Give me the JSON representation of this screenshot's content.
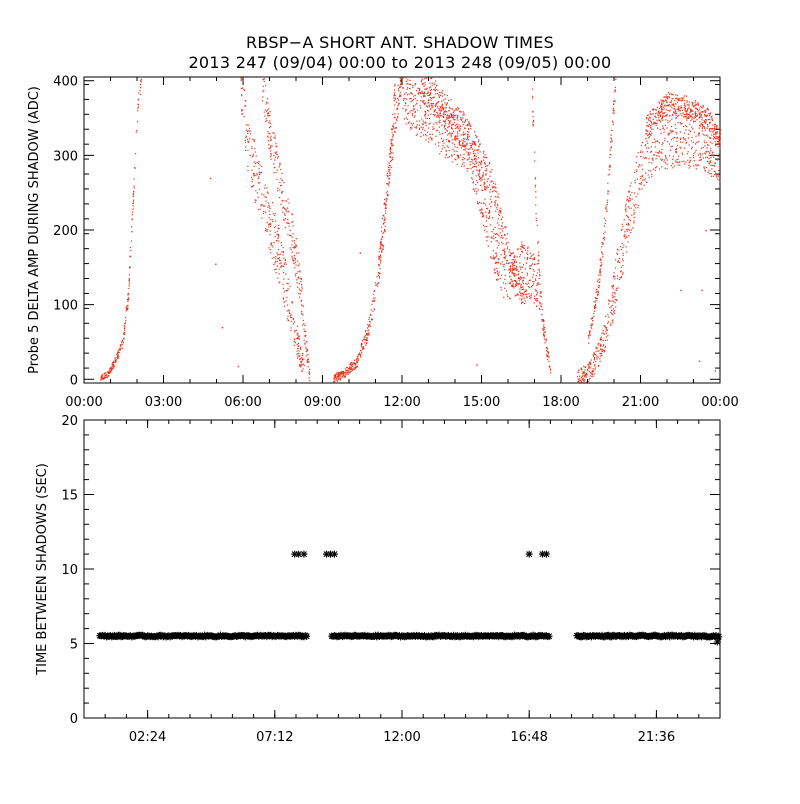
{
  "title": {
    "line1": "RBSP−A SHORT ANT. SHADOW TIMES",
    "line2": "2013 247 (09/04) 00:00 to 2013 248 (09/05) 00:00"
  },
  "colors": {
    "top_points": "#e8321c",
    "bottom_points": "#000000",
    "axes": "#000000"
  },
  "chart_data": [
    {
      "type": "scatter",
      "ylabel": "Probe 5 DELTA AMP DURING SHADOW (ADC)",
      "xlabel": "",
      "x_unit": "hours since 2013 247 00:00",
      "xlim": [
        0,
        24
      ],
      "ylim": [
        -5,
        405
      ],
      "x_ticks": [
        0,
        3,
        6,
        9,
        12,
        15,
        18,
        21,
        24
      ],
      "x_tick_labels": [
        "00:00",
        "03:00",
        "06:00",
        "09:00",
        "12:00",
        "15:00",
        "18:00",
        "21:00",
        "00:00"
      ],
      "y_ticks": [
        0,
        100,
        200,
        300,
        400
      ],
      "y_tick_labels": [
        "0",
        "100",
        "200",
        "300",
        "400"
      ],
      "marker": "dot",
      "segments": [
        {
          "band": [
            [
              0.6,
              2
            ],
            [
              0.9,
              8
            ],
            [
              1.2,
              28
            ],
            [
              1.45,
              50
            ],
            [
              1.65,
              110
            ],
            [
              1.85,
              250
            ],
            [
              2.0,
              360
            ],
            [
              2.15,
              405
            ]
          ],
          "spread": 12
        },
        {
          "band": [
            [
              5.9,
              405
            ],
            [
              6.15,
              320
            ],
            [
              6.5,
              270
            ],
            [
              7.0,
              210
            ],
            [
              7.4,
              160
            ],
            [
              7.8,
              90
            ],
            [
              8.1,
              40
            ],
            [
              8.3,
              10
            ]
          ],
          "spread": 40
        },
        {
          "band": [
            [
              6.7,
              405
            ],
            [
              7.0,
              330
            ],
            [
              7.4,
              260
            ],
            [
              7.8,
              200
            ],
            [
              8.1,
              140
            ],
            [
              8.35,
              50
            ],
            [
              8.5,
              5
            ]
          ],
          "spread": 30
        },
        {
          "band": [
            [
              9.4,
              2
            ],
            [
              9.8,
              8
            ],
            [
              10.3,
              25
            ],
            [
              10.7,
              65
            ],
            [
              11.0,
              120
            ],
            [
              11.3,
              200
            ],
            [
              11.55,
              300
            ],
            [
              11.75,
              405
            ]
          ],
          "spread": 18
        },
        {
          "band": [
            [
              11.1,
              150
            ],
            [
              11.4,
              250
            ],
            [
              11.7,
              340
            ],
            [
              11.95,
              405
            ]
          ],
          "spread": 20
        },
        {
          "band": [
            [
              12.0,
              380
            ],
            [
              12.6,
              360
            ],
            [
              13.3,
              340
            ],
            [
              13.9,
              325
            ],
            [
              14.5,
              310
            ],
            [
              15.0,
              250
            ],
            [
              15.5,
              170
            ],
            [
              16.0,
              130
            ],
            [
              16.5,
              150
            ],
            [
              16.9,
              140
            ],
            [
              17.2,
              120
            ]
          ],
          "spread": 35
        },
        {
          "band": [
            [
              12.7,
              400
            ],
            [
              13.6,
              360
            ],
            [
              14.4,
              330
            ],
            [
              15.4,
              260
            ],
            [
              16.1,
              150
            ],
            [
              16.7,
              110
            ]
          ],
          "spread": 25
        },
        {
          "band": [
            [
              16.9,
              380
            ],
            [
              17.05,
              220
            ],
            [
              17.25,
              90
            ],
            [
              17.4,
              50
            ],
            [
              17.55,
              20
            ],
            [
              17.6,
              5
            ]
          ],
          "spread": 18
        },
        {
          "band": [
            [
              18.6,
              2
            ],
            [
              19.0,
              8
            ],
            [
              19.5,
              40
            ],
            [
              19.9,
              100
            ],
            [
              20.2,
              160
            ],
            [
              20.5,
              210
            ],
            [
              20.8,
              260
            ],
            [
              21.2,
              300
            ],
            [
              21.6,
              320
            ],
            [
              22.5,
              320
            ],
            [
              23.3,
              320
            ],
            [
              24.0,
              300
            ]
          ],
          "spread": 38
        },
        {
          "band": [
            [
              19.0,
              50
            ],
            [
              19.4,
              130
            ],
            [
              19.7,
              230
            ],
            [
              19.9,
              330
            ],
            [
              20.05,
              405
            ]
          ],
          "spread": 15
        },
        {
          "band": [
            [
              21.2,
              340
            ],
            [
              22.0,
              370
            ],
            [
              22.8,
              365
            ],
            [
              23.5,
              350
            ],
            [
              24.0,
              320
            ]
          ],
          "spread": 15
        }
      ],
      "isolated_points": [
        {
          "x": 4.75,
          "y": 270
        },
        {
          "x": 4.95,
          "y": 155
        },
        {
          "x": 5.2,
          "y": 70
        },
        {
          "x": 5.8,
          "y": 18
        },
        {
          "x": 7.3,
          "y": 190
        },
        {
          "x": 10.4,
          "y": 170
        },
        {
          "x": 14.8,
          "y": 20
        },
        {
          "x": 22.5,
          "y": 120
        },
        {
          "x": 23.45,
          "y": 200
        },
        {
          "x": 23.3,
          "y": 120
        },
        {
          "x": 23.8,
          "y": 12
        },
        {
          "x": 23.2,
          "y": 25
        }
      ]
    },
    {
      "type": "scatter",
      "ylabel": "TIME BETWEEN SHADOWS (SEC)",
      "xlabel": "",
      "x_unit": "hours since 2013 247 00:00",
      "xlim": [
        0,
        24
      ],
      "ylim": [
        0,
        20
      ],
      "x_ticks": [
        2.4,
        7.2,
        12.0,
        16.8,
        21.6
      ],
      "x_tick_labels": [
        "02:24",
        "07:12",
        "12:00",
        "16:48",
        "21:36"
      ],
      "y_ticks": [
        0,
        5,
        10,
        15,
        20
      ],
      "y_tick_labels": [
        "0",
        "5",
        "10",
        "15",
        "20"
      ],
      "marker": "asterisk",
      "baseline_value": 5.5,
      "baseline_ranges": [
        [
          0.6,
          8.4
        ],
        [
          9.4,
          17.6
        ],
        [
          18.6,
          24.0
        ]
      ],
      "outliers": [
        {
          "x": 7.95,
          "y": 11.0
        },
        {
          "x": 8.1,
          "y": 11.0
        },
        {
          "x": 8.3,
          "y": 11.0
        },
        {
          "x": 9.15,
          "y": 11.0
        },
        {
          "x": 9.3,
          "y": 11.0
        },
        {
          "x": 9.45,
          "y": 11.0
        },
        {
          "x": 16.8,
          "y": 11.0
        },
        {
          "x": 17.3,
          "y": 11.0
        },
        {
          "x": 17.45,
          "y": 11.0
        },
        {
          "x": 9.35,
          "y": 5.5
        },
        {
          "x": 23.9,
          "y": 5.1
        }
      ]
    }
  ]
}
